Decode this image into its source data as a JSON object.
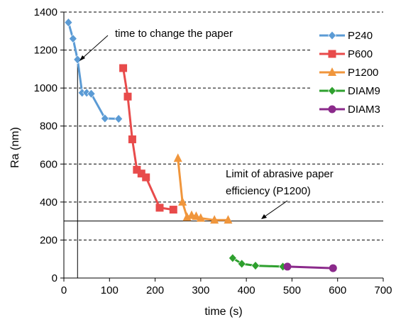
{
  "chart_data": {
    "type": "line",
    "xlabel": "time (s)",
    "ylabel": "Ra (nm)",
    "xlim": [
      0,
      700
    ],
    "ylim": [
      0,
      1400
    ],
    "xticks": [
      0,
      100,
      200,
      300,
      400,
      500,
      600,
      700
    ],
    "yticks": [
      0,
      200,
      400,
      600,
      800,
      1000,
      1200,
      1400
    ],
    "grid": "horizontal dashed",
    "legend_position": "top-right",
    "series": [
      {
        "name": "P240",
        "color": "#5B9BD5",
        "marker": "diamond",
        "x": [
          10,
          20,
          30,
          40,
          50,
          60,
          90,
          120
        ],
        "y": [
          1345,
          1260,
          1150,
          975,
          975,
          970,
          840,
          838
        ]
      },
      {
        "name": "P600",
        "color": "#E84B4B",
        "marker": "square",
        "x": [
          130,
          140,
          150,
          160,
          170,
          180,
          210,
          240
        ],
        "y": [
          1105,
          955,
          730,
          570,
          550,
          530,
          370,
          360
        ]
      },
      {
        "name": "P1200",
        "color": "#F0963C",
        "marker": "triangle",
        "x": [
          250,
          260,
          270,
          280,
          290,
          300,
          330,
          360
        ],
        "y": [
          630,
          400,
          320,
          330,
          325,
          315,
          305,
          305
        ]
      },
      {
        "name": "DIAM9",
        "color": "#2EA02E",
        "marker": "diamond",
        "x": [
          370,
          390,
          420,
          480
        ],
        "y": [
          105,
          75,
          65,
          60
        ]
      },
      {
        "name": "DIAM3",
        "color": "#8B2A8B",
        "marker": "circle",
        "x": [
          490,
          590
        ],
        "y": [
          60,
          52
        ]
      }
    ],
    "reference_lines": {
      "vertical_x": 30,
      "horizontal_y": 300
    },
    "annotations": [
      {
        "text": "time to change the paper"
      },
      {
        "text": "Limit of abrasive paper"
      },
      {
        "text": "efficiency (P1200)"
      }
    ]
  }
}
